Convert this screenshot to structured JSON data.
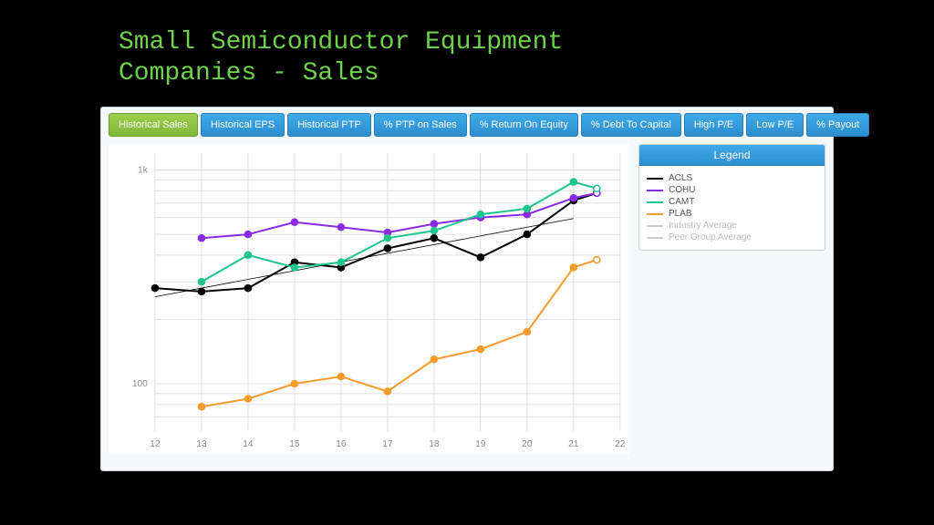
{
  "title_line1": "Small Semiconductor Equipment",
  "title_line2": "Companies - Sales",
  "tabs": [
    {
      "label": "Historical Sales",
      "active": true
    },
    {
      "label": "Historical EPS",
      "active": false
    },
    {
      "label": "Historical PTP",
      "active": false
    },
    {
      "label": "% PTP on Sales",
      "active": false
    },
    {
      "label": "% Return On Equity",
      "active": false
    },
    {
      "label": "% Debt To Capital",
      "active": false
    },
    {
      "label": "High P/E",
      "active": false
    },
    {
      "label": "Low P/E",
      "active": false
    },
    {
      "label": "% Payout",
      "active": false
    }
  ],
  "legend": {
    "title": "Legend",
    "items": [
      {
        "label": "ACLS",
        "color": "#000000",
        "muted": false
      },
      {
        "label": "COHU",
        "color": "#8A2BE2",
        "muted": false
      },
      {
        "label": "CAMT",
        "color": "#1FC68C",
        "muted": false
      },
      {
        "label": "PLAB",
        "color": "#F39C2C",
        "muted": false
      },
      {
        "label": "Industry Average",
        "color": "#cccccc",
        "muted": true
      },
      {
        "label": "Peer Group Average",
        "color": "#cccccc",
        "muted": true
      }
    ]
  },
  "chart": {
    "type": "line-log",
    "x_ticks": [
      12,
      13,
      14,
      15,
      16,
      17,
      18,
      19,
      20,
      21,
      22
    ],
    "xlim": [
      12,
      22
    ],
    "y_ticks": [
      {
        "v": 100,
        "label": "100"
      },
      {
        "v": 1000,
        "label": "1k"
      }
    ],
    "ylim": [
      60,
      1200
    ],
    "background_color": "#ffffff",
    "grid_color": "#e0e0e0",
    "axis_text_color": "#888888",
    "marker_radius": 3.5,
    "series": [
      {
        "name": "ACLS",
        "color": "#000000",
        "trend": true,
        "points": [
          {
            "x": 12,
            "y": 280
          },
          {
            "x": 13,
            "y": 270
          },
          {
            "x": 14,
            "y": 280
          },
          {
            "x": 15,
            "y": 370
          },
          {
            "x": 16,
            "y": 350
          },
          {
            "x": 17,
            "y": 430
          },
          {
            "x": 18,
            "y": 480
          },
          {
            "x": 19,
            "y": 390
          },
          {
            "x": 20,
            "y": 500
          },
          {
            "x": 21,
            "y": 720
          },
          {
            "x": 21.5,
            "y": 780,
            "open": true
          }
        ]
      },
      {
        "name": "COHU",
        "color": "#8A2BE2",
        "trend": false,
        "points": [
          {
            "x": 13,
            "y": 480
          },
          {
            "x": 14,
            "y": 500
          },
          {
            "x": 15,
            "y": 570
          },
          {
            "x": 16,
            "y": 540
          },
          {
            "x": 17,
            "y": 510
          },
          {
            "x": 18,
            "y": 560
          },
          {
            "x": 19,
            "y": 600
          },
          {
            "x": 20,
            "y": 620
          },
          {
            "x": 21,
            "y": 740
          },
          {
            "x": 21.5,
            "y": 780,
            "open": true
          }
        ]
      },
      {
        "name": "CAMT",
        "color": "#1FC68C",
        "trend": false,
        "points": [
          {
            "x": 13,
            "y": 300
          },
          {
            "x": 14,
            "y": 400
          },
          {
            "x": 15,
            "y": 350
          },
          {
            "x": 16,
            "y": 370
          },
          {
            "x": 17,
            "y": 480
          },
          {
            "x": 18,
            "y": 520
          },
          {
            "x": 19,
            "y": 620
          },
          {
            "x": 20,
            "y": 660
          },
          {
            "x": 21,
            "y": 880
          },
          {
            "x": 21.5,
            "y": 820,
            "open": true
          }
        ]
      },
      {
        "name": "PLAB",
        "color": "#F39C2C",
        "trend": false,
        "points": [
          {
            "x": 13,
            "y": 78
          },
          {
            "x": 14,
            "y": 85
          },
          {
            "x": 15,
            "y": 100
          },
          {
            "x": 16,
            "y": 108
          },
          {
            "x": 17,
            "y": 92
          },
          {
            "x": 18,
            "y": 130
          },
          {
            "x": 19,
            "y": 145
          },
          {
            "x": 20,
            "y": 175
          },
          {
            "x": 21,
            "y": 350
          },
          {
            "x": 21.5,
            "y": 380,
            "open": true
          }
        ]
      }
    ]
  }
}
